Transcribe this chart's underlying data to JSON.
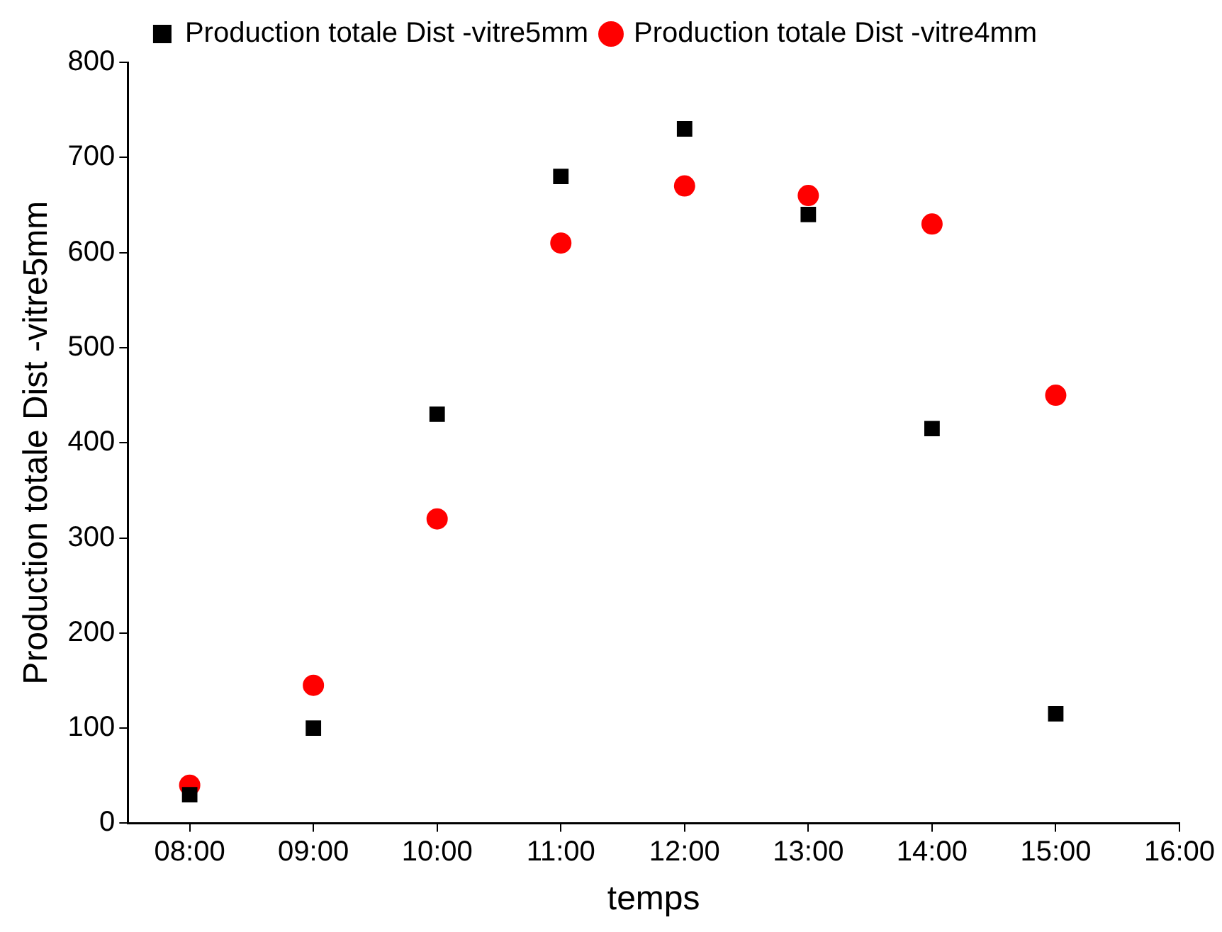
{
  "chart_data": {
    "type": "scatter",
    "xlabel": "temps",
    "ylabel": "Production totale Dist -vitre5mm",
    "x": [
      8,
      9,
      10,
      11,
      12,
      13,
      14,
      15
    ],
    "series": [
      {
        "name": "Production totale Dist -vitre5mm",
        "color": "#000000",
        "marker": "square",
        "values": [
          30,
          100,
          430,
          680,
          730,
          640,
          415,
          115
        ]
      },
      {
        "name": "Production totale Dist -vitre4mm",
        "color": "#ff0000",
        "marker": "circle",
        "values": [
          40,
          145,
          320,
          610,
          670,
          660,
          630,
          450
        ]
      }
    ],
    "xlim": [
      7.5,
      16
    ],
    "xticks": [
      {
        "value": 8,
        "label": "08:00"
      },
      {
        "value": 9,
        "label": "09:00"
      },
      {
        "value": 10,
        "label": "10:00"
      },
      {
        "value": 11,
        "label": "11:00"
      },
      {
        "value": 12,
        "label": "12:00"
      },
      {
        "value": 13,
        "label": "13:00"
      },
      {
        "value": 14,
        "label": "14:00"
      },
      {
        "value": 15,
        "label": "15:00"
      },
      {
        "value": 16,
        "label": "16:00"
      }
    ],
    "ylim": [
      0,
      800
    ],
    "yticks": [
      0,
      100,
      200,
      300,
      400,
      500,
      600,
      700,
      800
    ],
    "grid": false,
    "legend": "top"
  }
}
